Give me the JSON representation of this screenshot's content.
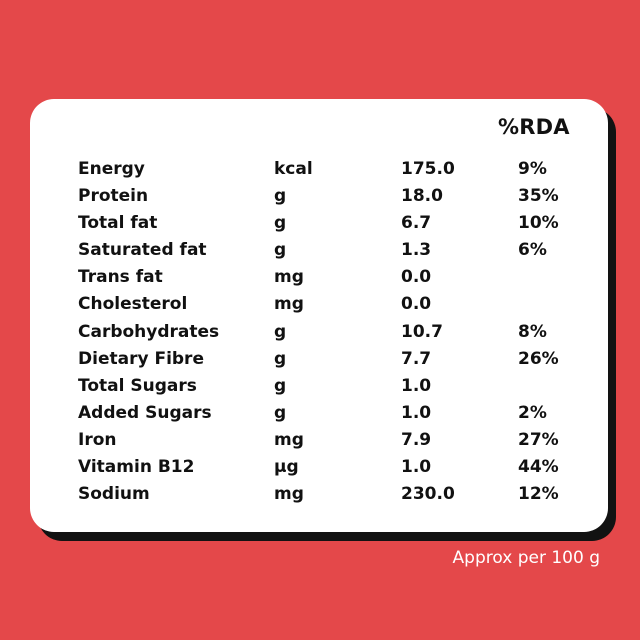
{
  "header": {
    "rda_label": "%RDA"
  },
  "rows": [
    {
      "name": "Energy",
      "unit": "kcal",
      "value": "175.0",
      "rda": "9%"
    },
    {
      "name": "Protein",
      "unit": "g",
      "value": "18.0",
      "rda": "35%"
    },
    {
      "name": "Total fat",
      "unit": "g",
      "value": "6.7",
      "rda": "10%"
    },
    {
      "name": "Saturated fat",
      "unit": "g",
      "value": "1.3",
      "rda": "6%"
    },
    {
      "name": "Trans fat",
      "unit": "mg",
      "value": "0.0",
      "rda": ""
    },
    {
      "name": "Cholesterol",
      "unit": "mg",
      "value": "0.0",
      "rda": ""
    },
    {
      "name": "Carbohydrates",
      "unit": "g",
      "value": "10.7",
      "rda": "8%"
    },
    {
      "name": "Dietary Fibre",
      "unit": "g",
      "value": "7.7",
      "rda": "26%"
    },
    {
      "name": "Total Sugars",
      "unit": "g",
      "value": "1.0",
      "rda": ""
    },
    {
      "name": "Added Sugars",
      "unit": "g",
      "value": "1.0",
      "rda": "2%"
    },
    {
      "name": "Iron",
      "unit": "mg",
      "value": "7.9",
      "rda": "27%"
    },
    {
      "name": "Vitamin B12",
      "unit": "µg",
      "value": "1.0",
      "rda": "44%"
    },
    {
      "name": "Sodium",
      "unit": "mg",
      "value": "230.0",
      "rda": "12%"
    }
  ],
  "footer": {
    "note": "Approx per 100 g"
  },
  "colors": {
    "background": "#e4484a",
    "card": "#ffffff",
    "shadow": "#121212",
    "text": "#111111",
    "footer_text": "#ffffff"
  }
}
